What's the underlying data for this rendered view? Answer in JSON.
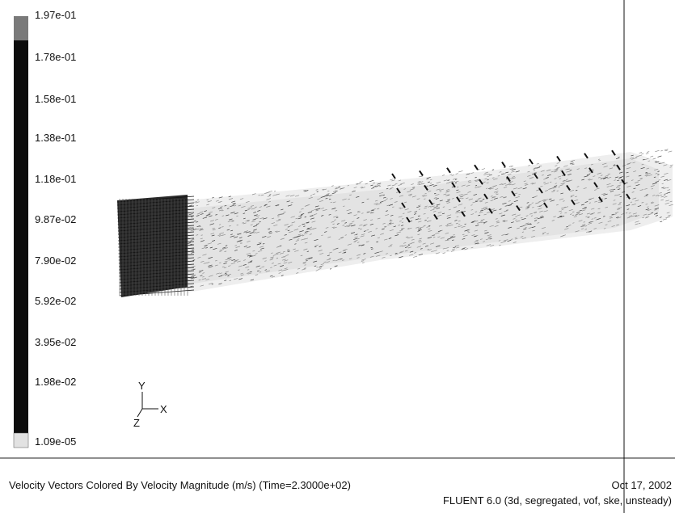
{
  "legend": {
    "labels": [
      "1.97e-01",
      "1.78e-01",
      "1.58e-01",
      "1.38e-01",
      "1.18e-01",
      "9.87e-02",
      "7.90e-02",
      "5.92e-02",
      "3.95e-02",
      "1.98e-02",
      "1.09e-05"
    ],
    "colors": {
      "top": "#7a7a7a",
      "body": "#0d0d0d",
      "bottom": "#e2e2e2"
    }
  },
  "axes": {
    "x": "X",
    "y": "Y",
    "z": "Z"
  },
  "caption": {
    "title": "Velocity Vectors Colored By Velocity Magnitude (m/s)  (Time=2.3000e+02)",
    "date": "Oct 17, 2002",
    "solver": "FLUENT 6.0 (3d, segregated, vof, ske, unsteady)"
  },
  "colors": {
    "background": "#ffffff",
    "ink": "#111111",
    "vectors_dense": "#1a1a1a",
    "vectors_light": "#9a9a9a"
  }
}
